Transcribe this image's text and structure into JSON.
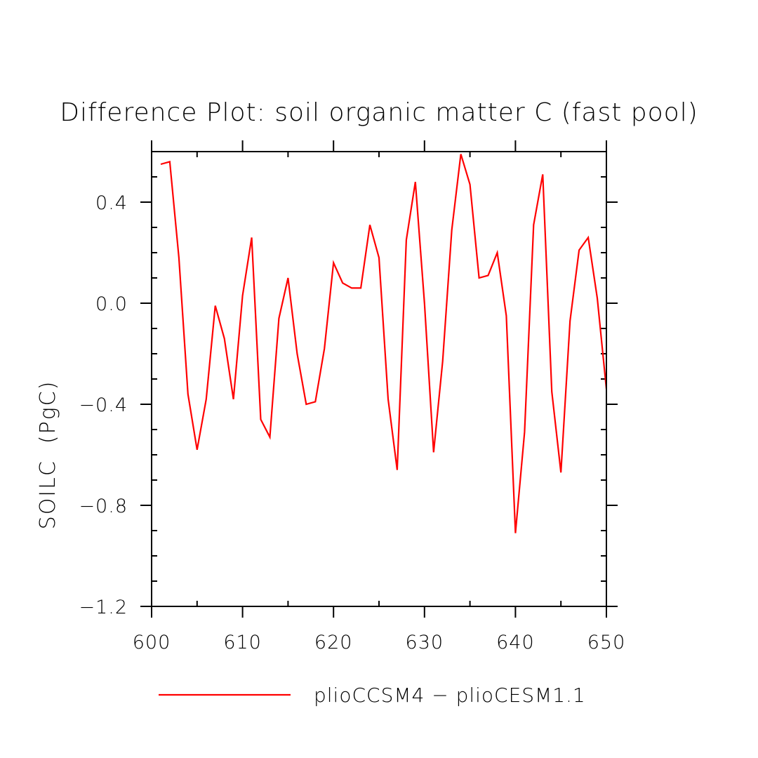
{
  "chart_data": {
    "type": "line",
    "title": "Difference Plot: soil organic matter C (fast pool)",
    "xlabel": "",
    "ylabel": "SOILC  (PgC)",
    "xlim": [
      600,
      650
    ],
    "ylim": [
      -1.2,
      0.6
    ],
    "x_ticks": [
      600,
      610,
      620,
      630,
      640,
      650
    ],
    "x_tick_labels": [
      "600",
      "610",
      "620",
      "630",
      "640",
      "650"
    ],
    "y_ticks": [
      -1.2,
      -0.8,
      -0.4,
      0.0,
      0.4
    ],
    "y_tick_labels": [
      "−1.2",
      "−0.8",
      "−0.4",
      "0.0",
      "0.4"
    ],
    "x_minor_step": 5,
    "y_minor_step": 0.1,
    "grid": false,
    "legend_position": "bottom",
    "line_color": "#ff0000",
    "axis_color": "#000000",
    "series": [
      {
        "name": "plioCCSM4 − plioCESM1.1",
        "color": "#ff0000",
        "x": [
          601,
          602,
          603,
          604,
          605,
          606,
          607,
          608,
          609,
          610,
          611,
          612,
          613,
          614,
          615,
          616,
          617,
          618,
          619,
          620,
          621,
          622,
          623,
          624,
          625,
          626,
          627,
          628,
          629,
          630,
          631,
          632,
          633,
          634,
          635,
          636,
          637,
          638,
          639,
          640,
          641,
          642,
          643,
          644,
          645,
          646,
          647,
          648,
          649,
          650
        ],
        "y": [
          0.55,
          0.56,
          0.18,
          -0.36,
          -0.58,
          -0.38,
          -0.01,
          -0.14,
          -0.38,
          0.03,
          0.26,
          -0.46,
          -0.53,
          -0.06,
          0.1,
          -0.2,
          -0.4,
          -0.39,
          -0.18,
          0.16,
          0.08,
          0.06,
          0.06,
          0.31,
          0.18,
          -0.38,
          -0.66,
          0.25,
          0.48,
          0.0,
          -0.59,
          -0.23,
          0.29,
          0.59,
          0.47,
          0.1,
          0.11,
          0.2,
          -0.05,
          -0.91,
          -0.51,
          0.31,
          0.51,
          -0.35,
          -0.67,
          -0.07,
          0.21,
          0.26,
          0.02,
          -0.34
        ]
      }
    ]
  }
}
